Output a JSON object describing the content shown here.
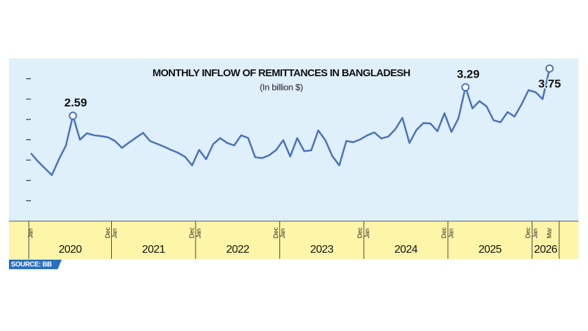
{
  "chart_data": {
    "type": "line",
    "title": "MONTHLY INFLOW OF REMITTANCES IN BANGLADESH",
    "subtitle": "(In billion $)",
    "source": "SOURCE: BB",
    "color": "#4a72c0",
    "categories": [
      "Jan",
      null,
      null,
      null,
      null,
      null,
      null,
      null,
      null,
      null,
      null,
      "Dec",
      "Jan",
      null,
      null,
      null,
      null,
      null,
      null,
      null,
      null,
      null,
      null,
      "Dec",
      "Jan",
      null,
      null,
      null,
      null,
      null,
      null,
      null,
      null,
      null,
      null,
      "Dec",
      "Jan",
      null,
      null,
      null,
      null,
      null,
      null,
      null,
      null,
      null,
      null,
      "Dec",
      "Jan",
      null,
      null,
      null,
      null,
      null,
      null,
      null,
      null,
      null,
      null,
      "Dec",
      "Jan",
      null,
      null,
      null,
      null,
      null,
      null,
      null,
      null,
      null,
      null,
      "Dec",
      "Jan",
      null,
      "Mar"
    ],
    "years": [
      "2020",
      "2021",
      "2022",
      "2023",
      "2024",
      "2025",
      "2026"
    ],
    "values": [
      1.67,
      1.47,
      1.3,
      1.13,
      1.52,
      1.86,
      2.59,
      2.0,
      2.16,
      2.11,
      2.09,
      2.06,
      1.97,
      1.8,
      1.93,
      2.05,
      2.17,
      1.97,
      1.9,
      1.83,
      1.75,
      1.68,
      1.58,
      1.37,
      1.75,
      1.52,
      1.89,
      2.04,
      1.92,
      1.86,
      2.11,
      2.04,
      1.57,
      1.55,
      1.62,
      1.75,
      1.99,
      1.59,
      2.04,
      1.72,
      1.74,
      2.23,
      1.99,
      1.6,
      1.37,
      1.97,
      1.94,
      2.01,
      2.11,
      2.18,
      2.03,
      2.08,
      2.26,
      2.54,
      1.92,
      2.24,
      2.41,
      2.4,
      2.21,
      2.65,
      2.19,
      2.53,
      3.29,
      2.77,
      2.95,
      2.82,
      2.48,
      2.43,
      2.68,
      2.57,
      2.87,
      3.22,
      3.17,
      3.0,
      3.75
    ],
    "value_labels": [
      null,
      null,
      null,
      null,
      null,
      null,
      "2.59",
      null,
      null,
      null,
      null,
      null,
      null,
      null,
      null,
      null,
      null,
      null,
      null,
      null,
      null,
      null,
      null,
      null,
      null,
      null,
      null,
      null,
      null,
      null,
      null,
      null,
      null,
      null,
      null,
      null,
      null,
      null,
      null,
      null,
      null,
      null,
      null,
      null,
      null,
      null,
      null,
      null,
      null,
      null,
      null,
      null,
      null,
      null,
      null,
      null,
      null,
      null,
      null,
      null,
      null,
      null,
      "3.29",
      null,
      null,
      null,
      null,
      null,
      null,
      null,
      null,
      null,
      null,
      null,
      "3.75"
    ],
    "ylim": [
      0,
      4
    ],
    "yticks": [
      0.5,
      1,
      1.5,
      2,
      2.5,
      3,
      3.5
    ]
  }
}
